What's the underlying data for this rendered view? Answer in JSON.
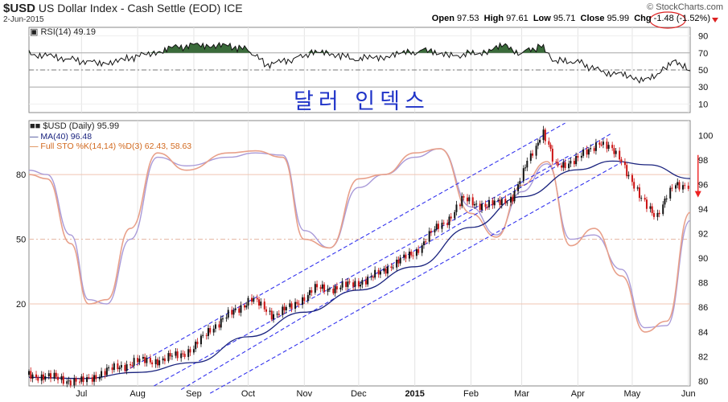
{
  "header": {
    "symbol": "$USD",
    "name": "US Dollar Index - Cash Settle (EOD)",
    "exchange": "ICE",
    "date": "2-Jun-2015",
    "brand": "© StockCharts.com",
    "open_label": "Open",
    "open": "97.53",
    "high_label": "High",
    "high": "97.61",
    "low_label": "Low",
    "low": "95.71",
    "close_label": "Close",
    "close": "95.99",
    "chg_label": "Chg",
    "chg": "-1.48",
    "chg_pct": "(-1.52%)"
  },
  "annotation_text": "달러 인덱스",
  "colors": {
    "price_up": "#111111",
    "price_down": "#cc1111",
    "ma": "#1a237e",
    "channel": "#3333ee",
    "sto_k": "#e8a08a",
    "sto_d": "#a99ad8",
    "rsi_fill": "#3a6b3a",
    "annotation": "#1f33c8",
    "chg_circle": "#dd2222",
    "down_arrow": "#ee2222"
  },
  "chart_data": [
    {
      "type": "line",
      "name": "RSI panel",
      "legend": "RSI(14) 49.19",
      "yticks": [
        10,
        30,
        50,
        70,
        90
      ],
      "ylim": [
        0,
        100
      ],
      "reference_lines": [
        30,
        50,
        70
      ],
      "x": [
        "2014-06-02",
        "2014-06-20",
        "2014-07-10",
        "2014-07-25",
        "2014-08-05",
        "2014-08-20",
        "2014-09-05",
        "2014-09-20",
        "2014-10-01",
        "2014-10-12",
        "2014-10-25",
        "2014-11-05",
        "2014-11-20",
        "2014-12-01",
        "2014-12-15",
        "2014-12-30",
        "2015-01-10",
        "2015-01-20",
        "2015-02-05",
        "2015-02-20",
        "2015-03-01",
        "2015-03-12",
        "2015-03-20",
        "2015-04-01",
        "2015-04-12",
        "2015-04-25",
        "2015-05-05",
        "2015-05-15",
        "2015-05-25",
        "2015-06-02"
      ],
      "values": [
        70,
        64,
        58,
        62,
        68,
        76,
        80,
        78,
        74,
        56,
        62,
        70,
        68,
        62,
        66,
        70,
        74,
        66,
        70,
        78,
        70,
        78,
        60,
        60,
        50,
        44,
        40,
        42,
        62,
        49
      ]
    },
    {
      "type": "line",
      "name": "Price panel",
      "legend_title": "$USD (Daily) 95.99",
      "legend_ma": "MA(40) 96.48",
      "legend_sto": "Full STO %K(14,14) %D(3) 62.43, 58.63",
      "price_yticks": [
        80,
        82,
        84,
        86,
        88,
        90,
        92,
        94,
        96,
        98,
        100
      ],
      "price_ylim": [
        79.6,
        101.2
      ],
      "sto_yticks": [
        20,
        50,
        80
      ],
      "sto_ylim": [
        -18,
        105
      ],
      "x_ticks": [
        "Jul",
        "Aug",
        "Sep",
        "Oct",
        "Nov",
        "Dec",
        "2015",
        "Feb",
        "Mar",
        "Apr",
        "May",
        "Jun"
      ],
      "x_tick_dates": [
        "2014-07-01",
        "2014-08-01",
        "2014-09-01",
        "2014-10-01",
        "2014-11-01",
        "2014-12-01",
        "2015-01-01",
        "2015-02-01",
        "2015-03-01",
        "2015-04-01",
        "2015-05-01",
        "2015-06-01"
      ],
      "x_range": [
        "2014-06-02",
        "2015-06-02"
      ],
      "price": {
        "x": [
          "2014-06-02",
          "2014-06-15",
          "2014-07-01",
          "2014-07-15",
          "2014-08-01",
          "2014-08-15",
          "2014-09-01",
          "2014-09-10",
          "2014-09-25",
          "2014-10-03",
          "2014-10-15",
          "2014-10-25",
          "2014-11-07",
          "2014-11-20",
          "2014-12-01",
          "2014-12-10",
          "2014-12-20",
          "2015-01-01",
          "2015-01-10",
          "2015-01-20",
          "2015-01-28",
          "2015-02-10",
          "2015-02-25",
          "2015-03-05",
          "2015-03-13",
          "2015-03-20",
          "2015-04-01",
          "2015-04-13",
          "2015-04-25",
          "2015-05-05",
          "2015-05-15",
          "2015-05-25",
          "2015-06-02"
        ],
        "values": [
          80.5,
          80.3,
          79.9,
          80.8,
          81.6,
          81.7,
          82.6,
          84.2,
          85.8,
          86.7,
          85.4,
          86.0,
          87.5,
          87.6,
          88.0,
          88.5,
          89.5,
          90.4,
          92.0,
          93.2,
          94.8,
          94.2,
          95.0,
          98.0,
          100.3,
          97.5,
          98.0,
          99.5,
          98.2,
          95.0,
          93.5,
          96.0,
          95.99
        ]
      },
      "ma40": {
        "x": [
          "2014-06-02",
          "2014-07-01",
          "2014-08-01",
          "2014-09-01",
          "2014-10-01",
          "2014-11-01",
          "2014-12-01",
          "2015-01-01",
          "2015-02-01",
          "2015-03-01",
          "2015-04-01",
          "2015-04-20",
          "2015-05-10",
          "2015-06-02"
        ],
        "values": [
          80.3,
          80.2,
          80.7,
          81.5,
          83.6,
          85.6,
          87.4,
          89.3,
          92.5,
          95.0,
          97.2,
          97.9,
          97.6,
          96.48
        ]
      },
      "sto_k": {
        "x": [
          "2014-06-02",
          "2014-06-12",
          "2014-06-25",
          "2014-07-05",
          "2014-07-15",
          "2014-07-28",
          "2014-08-12",
          "2014-08-28",
          "2014-09-20",
          "2014-10-05",
          "2014-10-20",
          "2014-11-01",
          "2014-11-15",
          "2014-12-01",
          "2014-12-15",
          "2015-01-01",
          "2015-01-15",
          "2015-02-01",
          "2015-02-15",
          "2015-03-01",
          "2015-03-15",
          "2015-03-28",
          "2015-04-10",
          "2015-04-25",
          "2015-05-08",
          "2015-05-20",
          "2015-06-02"
        ],
        "values": [
          80,
          78,
          48,
          20,
          22,
          55,
          90,
          82,
          90,
          91,
          88,
          50,
          46,
          78,
          80,
          90,
          92,
          62,
          51,
          75,
          86,
          47,
          55,
          33,
          7,
          12,
          62.43
        ]
      },
      "sto_d": {
        "x": [
          "2014-06-02",
          "2014-06-12",
          "2014-06-25",
          "2014-07-05",
          "2014-07-15",
          "2014-07-28",
          "2014-08-12",
          "2014-08-28",
          "2014-09-20",
          "2014-10-05",
          "2014-10-20",
          "2014-11-01",
          "2014-11-15",
          "2014-12-01",
          "2014-12-15",
          "2015-01-01",
          "2015-01-15",
          "2015-02-01",
          "2015-02-15",
          "2015-03-01",
          "2015-03-15",
          "2015-03-28",
          "2015-04-10",
          "2015-04-25",
          "2015-05-08",
          "2015-05-20",
          "2015-06-02"
        ],
        "values": [
          82,
          80,
          52,
          22,
          20,
          50,
          88,
          84,
          88,
          90,
          89,
          54,
          46,
          74,
          80,
          88,
          92,
          65,
          52,
          72,
          85,
          50,
          52,
          36,
          9,
          10,
          58.63
        ]
      },
      "channels": [
        {
          "x": [
            "2014-07-25",
            "2015-03-25"
          ],
          "values": [
            80.8,
            101.0
          ]
        },
        {
          "x": [
            "2014-08-10",
            "2015-03-28"
          ],
          "values": [
            79.6,
            98.4
          ]
        },
        {
          "x": [
            "2014-08-25",
            "2015-04-20"
          ],
          "values": [
            79.3,
            100.2
          ]
        },
        {
          "x": [
            "2014-09-10",
            "2015-04-25"
          ],
          "values": [
            79.0,
            97.8
          ]
        }
      ],
      "sto_reference_lines": [
        20,
        50,
        80
      ],
      "down_arrow": {
        "x": "2015-06-01",
        "from": 98.4,
        "to": 95.2
      }
    }
  ]
}
